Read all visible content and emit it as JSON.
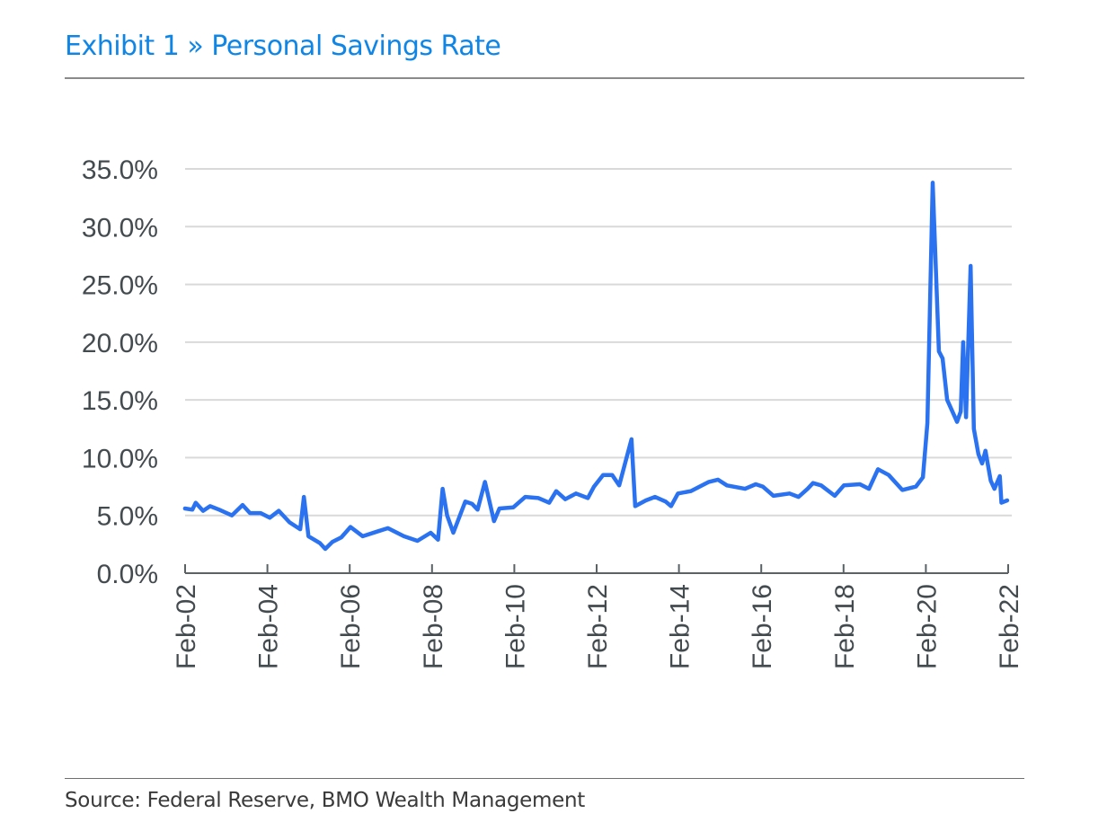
{
  "header": {
    "title": "Exhibit 1 » Personal Savings Rate"
  },
  "footer": {
    "source": "Source: Federal Reserve, BMO Wealth Management"
  },
  "chart_data": {
    "type": "line",
    "title": "Exhibit 1 » Personal Savings Rate",
    "xlabel": "",
    "ylabel": "",
    "ylim": [
      0,
      35
    ],
    "xlim_years": [
      2002.083,
      2022.083
    ],
    "grid": true,
    "legend": "none",
    "line_color": "#2a72f0",
    "y_ticks": [
      "0.0%",
      "5.0%",
      "10.0%",
      "15.0%",
      "20.0%",
      "25.0%",
      "30.0%",
      "35.0%"
    ],
    "y_tick_values": [
      0,
      5,
      10,
      15,
      20,
      25,
      30,
      35
    ],
    "x_ticks": [
      "Feb-02",
      "Feb-04",
      "Feb-06",
      "Feb-08",
      "Feb-10",
      "Feb-12",
      "Feb-14",
      "Feb-16",
      "Feb-18",
      "Feb-20",
      "Feb-22"
    ],
    "x_tick_values": [
      2002.083,
      2004.083,
      2006.083,
      2008.083,
      2010.083,
      2012.083,
      2014.083,
      2016.083,
      2018.083,
      2020.083,
      2022.083
    ],
    "series": [
      {
        "name": "Personal Savings Rate",
        "unit": "%",
        "x": [
          2002.08,
          2002.26,
          2002.34,
          2002.52,
          2002.69,
          2002.91,
          2003.22,
          2003.48,
          2003.66,
          2003.92,
          2004.14,
          2004.36,
          2004.62,
          2004.88,
          2004.97,
          2005.08,
          2005.36,
          2005.49,
          2005.66,
          2005.88,
          2006.1,
          2006.4,
          2006.75,
          2007.01,
          2007.4,
          2007.73,
          2008.05,
          2008.23,
          2008.34,
          2008.45,
          2008.6,
          2008.89,
          2009.06,
          2009.19,
          2009.37,
          2009.59,
          2009.72,
          2010.06,
          2010.35,
          2010.67,
          2010.93,
          2011.1,
          2011.32,
          2011.58,
          2011.87,
          2012.02,
          2012.24,
          2012.46,
          2012.63,
          2012.93,
          2013.02,
          2013.28,
          2013.5,
          2013.76,
          2013.89,
          2014.06,
          2014.37,
          2014.81,
          2015.03,
          2015.25,
          2015.69,
          2015.95,
          2016.12,
          2016.38,
          2016.77,
          2016.99,
          2017.21,
          2017.34,
          2017.54,
          2017.87,
          2018.09,
          2018.48,
          2018.7,
          2018.92,
          2019.18,
          2019.51,
          2019.84,
          2020.01,
          2020.12,
          2020.25,
          2020.4,
          2020.49,
          2020.6,
          2020.84,
          2020.93,
          2020.99,
          2021.06,
          2021.17,
          2021.25,
          2021.36,
          2021.45,
          2021.53,
          2021.66,
          2021.75,
          2021.88,
          2021.92,
          2022.06
        ],
        "values": [
          5.6,
          5.5,
          6.1,
          5.4,
          5.8,
          5.5,
          5.0,
          5.9,
          5.2,
          5.2,
          4.8,
          5.4,
          4.4,
          3.8,
          6.6,
          3.2,
          2.6,
          2.1,
          2.7,
          3.1,
          4.0,
          3.2,
          3.6,
          3.9,
          3.2,
          2.8,
          3.5,
          2.9,
          7.3,
          5.0,
          3.5,
          6.2,
          6.0,
          5.5,
          7.9,
          4.5,
          5.6,
          5.7,
          6.6,
          6.5,
          6.1,
          7.1,
          6.4,
          6.9,
          6.5,
          7.5,
          8.5,
          8.5,
          7.6,
          11.6,
          5.8,
          6.3,
          6.6,
          6.2,
          5.8,
          6.9,
          7.1,
          7.9,
          8.1,
          7.6,
          7.3,
          7.7,
          7.5,
          6.7,
          6.9,
          6.6,
          7.3,
          7.8,
          7.6,
          6.7,
          7.6,
          7.7,
          7.3,
          9.0,
          8.5,
          7.2,
          7.5,
          8.3,
          13.0,
          33.8,
          19.2,
          18.6,
          15.0,
          13.1,
          14.0,
          20.0,
          13.5,
          26.6,
          12.5,
          10.3,
          9.5,
          10.6,
          8.0,
          7.3,
          8.4,
          6.1,
          6.3
        ]
      }
    ]
  }
}
